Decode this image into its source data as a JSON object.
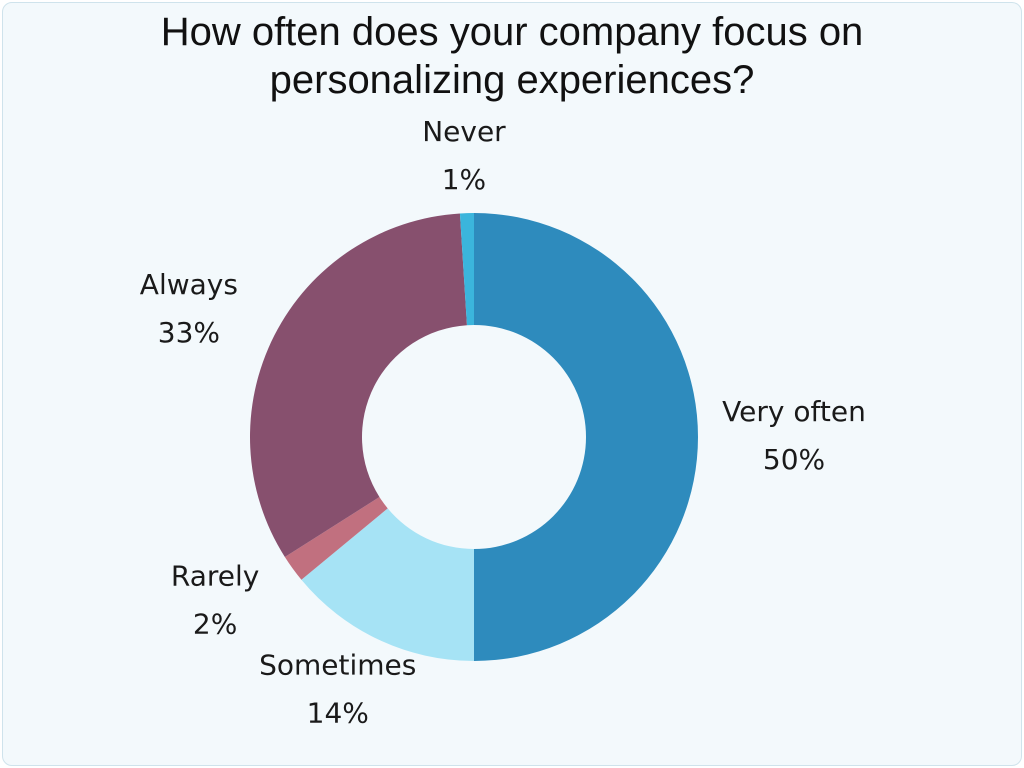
{
  "chart_data": {
    "type": "donut",
    "title": "How often does your company focus on personalizing experiences?",
    "categories": [
      "Very often",
      "Sometimes",
      "Rarely",
      "Always",
      "Never"
    ],
    "values": [
      50,
      14,
      2,
      33,
      1
    ],
    "value_labels": [
      "50%",
      "14%",
      "2%",
      "33%",
      "1%"
    ],
    "colors": [
      "#2e8bbd",
      "#a6e3f5",
      "#c1707f",
      "#87506e",
      "#3bb5dc"
    ]
  }
}
